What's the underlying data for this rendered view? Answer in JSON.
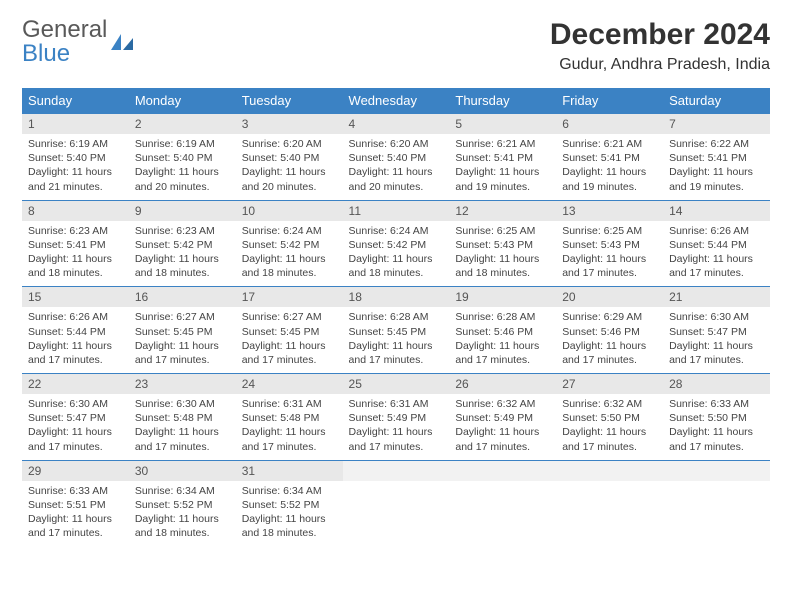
{
  "brand": {
    "name_part1": "General",
    "name_part2": "Blue",
    "accent_color": "#3b82c4",
    "text_color": "#595959"
  },
  "header": {
    "month_title": "December 2024",
    "location": "Gudur, Andhra Pradesh, India"
  },
  "styling": {
    "header_bg": "#3b82c4",
    "header_text": "#ffffff",
    "daynum_bg": "#e8e8e8",
    "cell_border": "#3b82c4",
    "body_text": "#444444",
    "font_family": "Arial",
    "th_fontsize": 13,
    "daynum_fontsize": 12,
    "body_fontsize": 10.5
  },
  "weekdays": [
    "Sunday",
    "Monday",
    "Tuesday",
    "Wednesday",
    "Thursday",
    "Friday",
    "Saturday"
  ],
  "weeks": [
    [
      {
        "n": "1",
        "sr": "Sunrise: 6:19 AM",
        "ss": "Sunset: 5:40 PM",
        "d1": "Daylight: 11 hours",
        "d2": "and 21 minutes."
      },
      {
        "n": "2",
        "sr": "Sunrise: 6:19 AM",
        "ss": "Sunset: 5:40 PM",
        "d1": "Daylight: 11 hours",
        "d2": "and 20 minutes."
      },
      {
        "n": "3",
        "sr": "Sunrise: 6:20 AM",
        "ss": "Sunset: 5:40 PM",
        "d1": "Daylight: 11 hours",
        "d2": "and 20 minutes."
      },
      {
        "n": "4",
        "sr": "Sunrise: 6:20 AM",
        "ss": "Sunset: 5:40 PM",
        "d1": "Daylight: 11 hours",
        "d2": "and 20 minutes."
      },
      {
        "n": "5",
        "sr": "Sunrise: 6:21 AM",
        "ss": "Sunset: 5:41 PM",
        "d1": "Daylight: 11 hours",
        "d2": "and 19 minutes."
      },
      {
        "n": "6",
        "sr": "Sunrise: 6:21 AM",
        "ss": "Sunset: 5:41 PM",
        "d1": "Daylight: 11 hours",
        "d2": "and 19 minutes."
      },
      {
        "n": "7",
        "sr": "Sunrise: 6:22 AM",
        "ss": "Sunset: 5:41 PM",
        "d1": "Daylight: 11 hours",
        "d2": "and 19 minutes."
      }
    ],
    [
      {
        "n": "8",
        "sr": "Sunrise: 6:23 AM",
        "ss": "Sunset: 5:41 PM",
        "d1": "Daylight: 11 hours",
        "d2": "and 18 minutes."
      },
      {
        "n": "9",
        "sr": "Sunrise: 6:23 AM",
        "ss": "Sunset: 5:42 PM",
        "d1": "Daylight: 11 hours",
        "d2": "and 18 minutes."
      },
      {
        "n": "10",
        "sr": "Sunrise: 6:24 AM",
        "ss": "Sunset: 5:42 PM",
        "d1": "Daylight: 11 hours",
        "d2": "and 18 minutes."
      },
      {
        "n": "11",
        "sr": "Sunrise: 6:24 AM",
        "ss": "Sunset: 5:42 PM",
        "d1": "Daylight: 11 hours",
        "d2": "and 18 minutes."
      },
      {
        "n": "12",
        "sr": "Sunrise: 6:25 AM",
        "ss": "Sunset: 5:43 PM",
        "d1": "Daylight: 11 hours",
        "d2": "and 18 minutes."
      },
      {
        "n": "13",
        "sr": "Sunrise: 6:25 AM",
        "ss": "Sunset: 5:43 PM",
        "d1": "Daylight: 11 hours",
        "d2": "and 17 minutes."
      },
      {
        "n": "14",
        "sr": "Sunrise: 6:26 AM",
        "ss": "Sunset: 5:44 PM",
        "d1": "Daylight: 11 hours",
        "d2": "and 17 minutes."
      }
    ],
    [
      {
        "n": "15",
        "sr": "Sunrise: 6:26 AM",
        "ss": "Sunset: 5:44 PM",
        "d1": "Daylight: 11 hours",
        "d2": "and 17 minutes."
      },
      {
        "n": "16",
        "sr": "Sunrise: 6:27 AM",
        "ss": "Sunset: 5:45 PM",
        "d1": "Daylight: 11 hours",
        "d2": "and 17 minutes."
      },
      {
        "n": "17",
        "sr": "Sunrise: 6:27 AM",
        "ss": "Sunset: 5:45 PM",
        "d1": "Daylight: 11 hours",
        "d2": "and 17 minutes."
      },
      {
        "n": "18",
        "sr": "Sunrise: 6:28 AM",
        "ss": "Sunset: 5:45 PM",
        "d1": "Daylight: 11 hours",
        "d2": "and 17 minutes."
      },
      {
        "n": "19",
        "sr": "Sunrise: 6:28 AM",
        "ss": "Sunset: 5:46 PM",
        "d1": "Daylight: 11 hours",
        "d2": "and 17 minutes."
      },
      {
        "n": "20",
        "sr": "Sunrise: 6:29 AM",
        "ss": "Sunset: 5:46 PM",
        "d1": "Daylight: 11 hours",
        "d2": "and 17 minutes."
      },
      {
        "n": "21",
        "sr": "Sunrise: 6:30 AM",
        "ss": "Sunset: 5:47 PM",
        "d1": "Daylight: 11 hours",
        "d2": "and 17 minutes."
      }
    ],
    [
      {
        "n": "22",
        "sr": "Sunrise: 6:30 AM",
        "ss": "Sunset: 5:47 PM",
        "d1": "Daylight: 11 hours",
        "d2": "and 17 minutes."
      },
      {
        "n": "23",
        "sr": "Sunrise: 6:30 AM",
        "ss": "Sunset: 5:48 PM",
        "d1": "Daylight: 11 hours",
        "d2": "and 17 minutes."
      },
      {
        "n": "24",
        "sr": "Sunrise: 6:31 AM",
        "ss": "Sunset: 5:48 PM",
        "d1": "Daylight: 11 hours",
        "d2": "and 17 minutes."
      },
      {
        "n": "25",
        "sr": "Sunrise: 6:31 AM",
        "ss": "Sunset: 5:49 PM",
        "d1": "Daylight: 11 hours",
        "d2": "and 17 minutes."
      },
      {
        "n": "26",
        "sr": "Sunrise: 6:32 AM",
        "ss": "Sunset: 5:49 PM",
        "d1": "Daylight: 11 hours",
        "d2": "and 17 minutes."
      },
      {
        "n": "27",
        "sr": "Sunrise: 6:32 AM",
        "ss": "Sunset: 5:50 PM",
        "d1": "Daylight: 11 hours",
        "d2": "and 17 minutes."
      },
      {
        "n": "28",
        "sr": "Sunrise: 6:33 AM",
        "ss": "Sunset: 5:50 PM",
        "d1": "Daylight: 11 hours",
        "d2": "and 17 minutes."
      }
    ],
    [
      {
        "n": "29",
        "sr": "Sunrise: 6:33 AM",
        "ss": "Sunset: 5:51 PM",
        "d1": "Daylight: 11 hours",
        "d2": "and 17 minutes."
      },
      {
        "n": "30",
        "sr": "Sunrise: 6:34 AM",
        "ss": "Sunset: 5:52 PM",
        "d1": "Daylight: 11 hours",
        "d2": "and 18 minutes."
      },
      {
        "n": "31",
        "sr": "Sunrise: 6:34 AM",
        "ss": "Sunset: 5:52 PM",
        "d1": "Daylight: 11 hours",
        "d2": "and 18 minutes."
      },
      {
        "empty": true
      },
      {
        "empty": true
      },
      {
        "empty": true
      },
      {
        "empty": true
      }
    ]
  ]
}
